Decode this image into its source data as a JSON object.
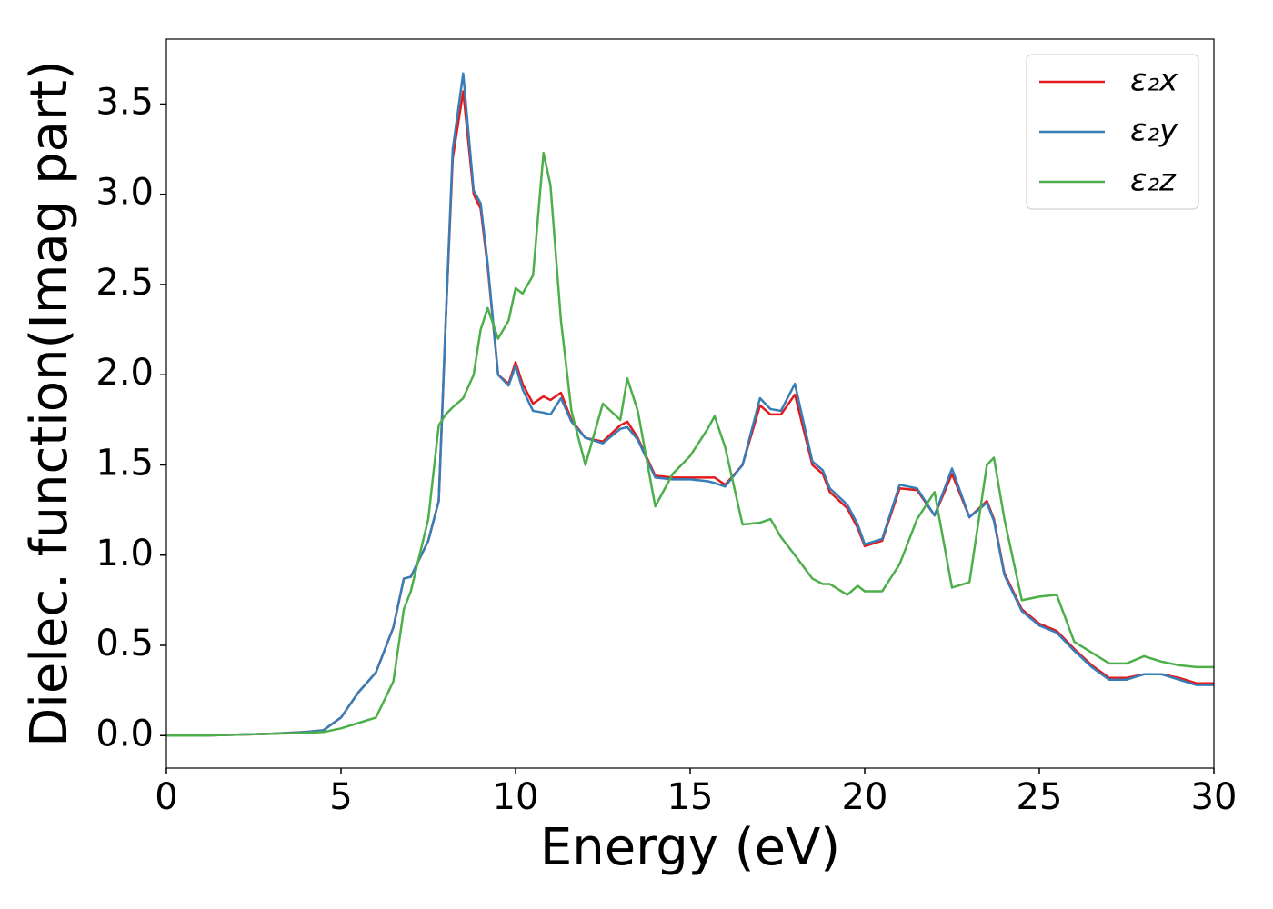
{
  "chart_data": {
    "type": "line",
    "xlabel": "Energy (eV)",
    "ylabel": "Dielec. function(Imag part)",
    "x": [
      0,
      1,
      2,
      3,
      4,
      4.5,
      5,
      5.5,
      6,
      6.5,
      6.8,
      7,
      7.5,
      7.8,
      8,
      8.2,
      8.5,
      8.8,
      9,
      9.2,
      9.5,
      9.8,
      10,
      10.2,
      10.5,
      10.8,
      11,
      11.3,
      11.6,
      12,
      12.5,
      13,
      13.2,
      13.5,
      14,
      14.5,
      15,
      15.5,
      15.7,
      16,
      16.5,
      17,
      17.3,
      17.6,
      18,
      18.5,
      18.8,
      19,
      19.5,
      19.8,
      20,
      20.5,
      21,
      21.5,
      22,
      22.5,
      23,
      23.5,
      23.7,
      24,
      24.5,
      25,
      25.5,
      26,
      26.5,
      27,
      27.5,
      28,
      28.5,
      29,
      29.5,
      30
    ],
    "series": [
      {
        "name": "ε₂x",
        "color": "#e41a1c",
        "values": [
          0,
          0,
          0.005,
          0.01,
          0.02,
          0.03,
          0.1,
          0.24,
          0.35,
          0.6,
          0.87,
          0.88,
          1.08,
          1.3,
          2.3,
          3.2,
          3.57,
          3.0,
          2.92,
          2.6,
          2.0,
          1.95,
          2.07,
          1.95,
          1.84,
          1.88,
          1.86,
          1.9,
          1.75,
          1.65,
          1.63,
          1.72,
          1.74,
          1.65,
          1.44,
          1.43,
          1.43,
          1.43,
          1.43,
          1.39,
          1.5,
          1.83,
          1.78,
          1.78,
          1.89,
          1.5,
          1.45,
          1.35,
          1.26,
          1.15,
          1.05,
          1.08,
          1.37,
          1.36,
          1.22,
          1.45,
          1.21,
          1.3,
          1.2,
          0.9,
          0.7,
          0.62,
          0.58,
          0.48,
          0.39,
          0.32,
          0.32,
          0.34,
          0.34,
          0.32,
          0.29,
          0.29
        ]
      },
      {
        "name": "ε₂y",
        "color": "#377eb8",
        "values": [
          0,
          0,
          0.005,
          0.01,
          0.02,
          0.03,
          0.1,
          0.24,
          0.35,
          0.6,
          0.87,
          0.88,
          1.08,
          1.3,
          2.3,
          3.25,
          3.67,
          3.02,
          2.95,
          2.62,
          2.0,
          1.94,
          2.05,
          1.92,
          1.8,
          1.79,
          1.78,
          1.87,
          1.74,
          1.65,
          1.62,
          1.7,
          1.71,
          1.64,
          1.43,
          1.42,
          1.42,
          1.41,
          1.4,
          1.38,
          1.5,
          1.87,
          1.81,
          1.8,
          1.95,
          1.52,
          1.47,
          1.37,
          1.28,
          1.17,
          1.06,
          1.09,
          1.39,
          1.37,
          1.22,
          1.48,
          1.21,
          1.29,
          1.19,
          0.89,
          0.69,
          0.61,
          0.57,
          0.47,
          0.38,
          0.31,
          0.31,
          0.34,
          0.34,
          0.31,
          0.28,
          0.28
        ]
      },
      {
        "name": "ε₂z",
        "color": "#4daf4a",
        "values": [
          0,
          0,
          0.005,
          0.01,
          0.015,
          0.02,
          0.04,
          0.07,
          0.1,
          0.3,
          0.7,
          0.8,
          1.2,
          1.72,
          1.78,
          1.82,
          1.87,
          2.0,
          2.25,
          2.37,
          2.2,
          2.3,
          2.48,
          2.45,
          2.55,
          3.23,
          3.05,
          2.3,
          1.8,
          1.5,
          1.84,
          1.75,
          1.98,
          1.8,
          1.27,
          1.45,
          1.55,
          1.7,
          1.77,
          1.6,
          1.17,
          1.18,
          1.2,
          1.1,
          1.0,
          0.87,
          0.84,
          0.84,
          0.78,
          0.83,
          0.8,
          0.8,
          0.95,
          1.2,
          1.35,
          0.82,
          0.85,
          1.5,
          1.54,
          1.2,
          0.75,
          0.77,
          0.78,
          0.52,
          0.46,
          0.4,
          0.4,
          0.44,
          0.41,
          0.39,
          0.38,
          0.38
        ]
      }
    ],
    "xlim": [
      0,
      30
    ],
    "xticks": [
      0,
      5,
      10,
      15,
      20,
      25,
      30
    ],
    "ylim": [
      -0.18,
      3.86
    ],
    "yticks": [
      {
        "value": 0,
        "label": "0.0"
      },
      {
        "value": 0.5,
        "label": "0.5"
      },
      {
        "value": 1,
        "label": "1.0"
      },
      {
        "value": 1.5,
        "label": "1.5"
      },
      {
        "value": 2,
        "label": "2.0"
      },
      {
        "value": 2.5,
        "label": "2.5"
      },
      {
        "value": 3,
        "label": "3.0"
      },
      {
        "value": 3.5,
        "label": "3.5"
      }
    ],
    "legend": "upper right",
    "grid": false
  }
}
